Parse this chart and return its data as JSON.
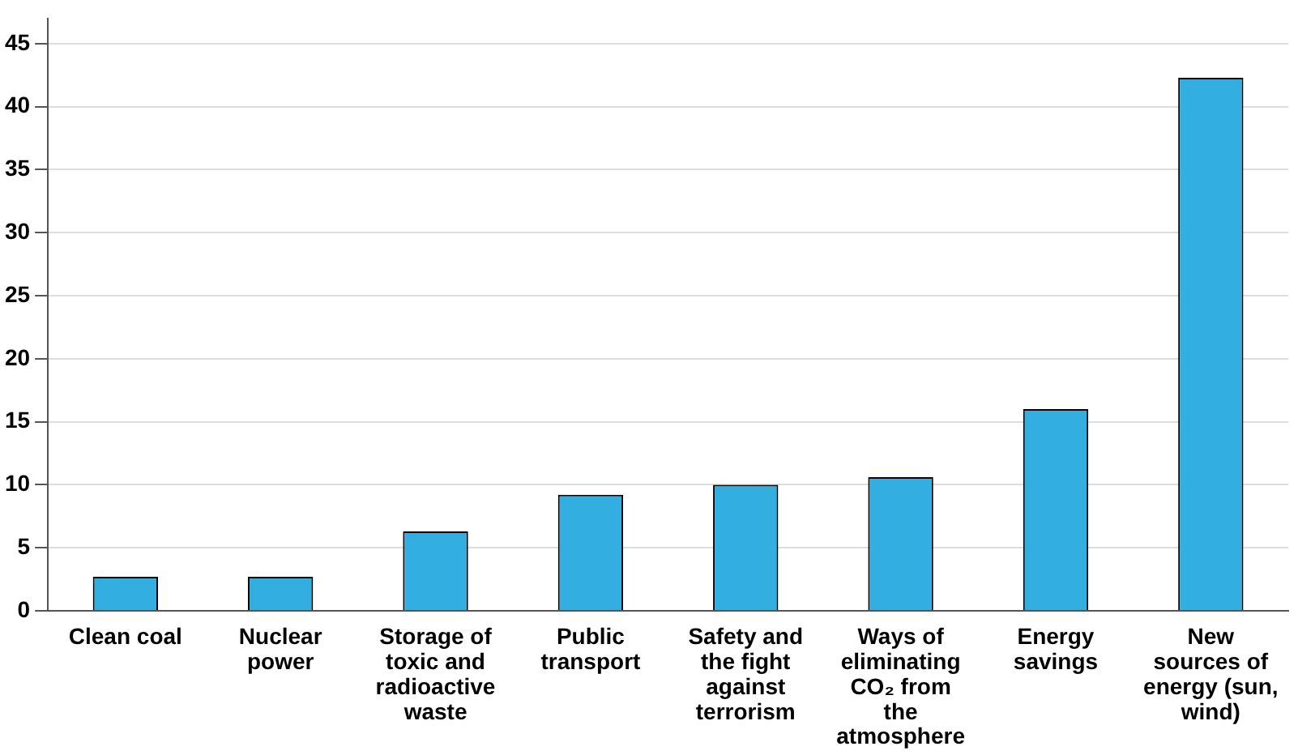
{
  "chart_data": {
    "type": "bar",
    "categories": [
      "Clean coal",
      "Nuclear power",
      "Storage of toxic and radioactive waste",
      "Public transport",
      "Safety and the fight against terrorism",
      "Ways of eliminating CO₂ from the atmosphere",
      "Energy savings",
      "New sources of energy (sun, wind)"
    ],
    "values": [
      2.7,
      2.7,
      6.3,
      9.2,
      10.0,
      10.6,
      16.0,
      42.3
    ],
    "color": "#33aee0",
    "ylim": [
      0,
      47
    ],
    "yticks": [
      0,
      5,
      10,
      15,
      20,
      25,
      30,
      35,
      40,
      45
    ],
    "grid": "y",
    "legend": false
  }
}
